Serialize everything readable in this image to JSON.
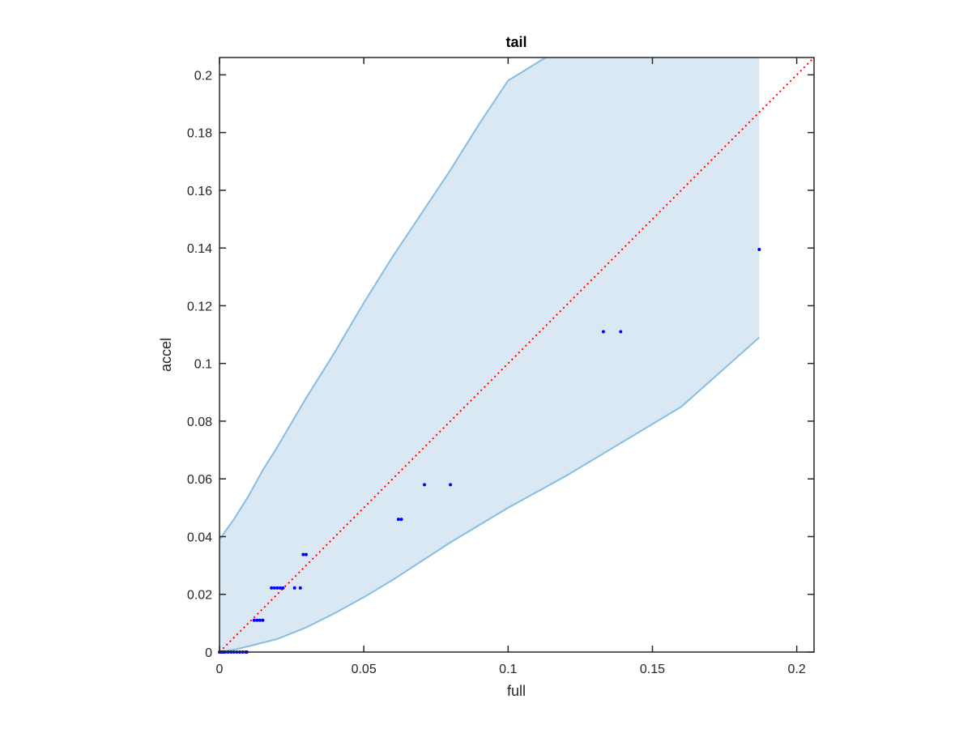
{
  "chart_data": {
    "type": "scatter",
    "title": "tail",
    "xlabel": "full",
    "ylabel": "accel",
    "xlim": [
      0,
      0.206
    ],
    "ylim": [
      0,
      0.206
    ],
    "xticks": [
      0,
      0.05,
      0.1,
      0.15,
      0.2
    ],
    "xtick_labels": [
      "0",
      "0.05",
      "0.1",
      "0.15",
      "0.2"
    ],
    "yticks": [
      0,
      0.02,
      0.04,
      0.06,
      0.08,
      0.1,
      0.12,
      0.14,
      0.16,
      0.18,
      0.2
    ],
    "ytick_labels": [
      "0",
      "0.02",
      "0.04",
      "0.06",
      "0.08",
      "0.1",
      "0.12",
      "0.14",
      "0.16",
      "0.18",
      "0.2"
    ],
    "grid": false,
    "colors": {
      "points": "#0000ff",
      "band_fill": "#dae8f4",
      "band_edge": "#86bde3",
      "reference_line": "#ff0000",
      "axes": "#262626"
    },
    "reference_line": {
      "style": "dotted",
      "x": [
        0,
        0.206
      ],
      "y": [
        0,
        0.206
      ]
    },
    "band": {
      "upper": {
        "x": [
          0,
          0.005,
          0.01,
          0.015,
          0.02,
          0.03,
          0.04,
          0.05,
          0.06,
          0.07,
          0.08,
          0.09,
          0.1,
          0.113
        ],
        "y": [
          0.039,
          0.046,
          0.054,
          0.063,
          0.071,
          0.088,
          0.104,
          0.121,
          0.137,
          0.152,
          0.167,
          0.183,
          0.198,
          0.206
        ]
      },
      "lower": {
        "x": [
          0,
          0.005,
          0.01,
          0.02,
          0.03,
          0.04,
          0.05,
          0.06,
          0.08,
          0.1,
          0.12,
          0.14,
          0.16,
          0.187
        ],
        "y": [
          0,
          0.0008,
          0.002,
          0.0045,
          0.0085,
          0.0135,
          0.019,
          0.025,
          0.038,
          0.05,
          0.061,
          0.073,
          0.085,
          0.109
        ]
      },
      "right_edge_x": 0.187
    },
    "points": {
      "x": [
        0,
        0.0005,
        0.001,
        0.0015,
        0.002,
        0.003,
        0.004,
        0.005,
        0.006,
        0.007,
        0.008,
        0.009,
        0.0095,
        0.012,
        0.013,
        0.014,
        0.015,
        0.018,
        0.019,
        0.02,
        0.021,
        0.022,
        0.026,
        0.028,
        0.029,
        0.03,
        0.062,
        0.063,
        0.071,
        0.08,
        0.133,
        0.139,
        0.187
      ],
      "y": [
        0,
        0,
        0,
        0,
        0,
        0,
        0,
        0,
        0,
        0,
        0,
        0,
        0,
        0.011,
        0.011,
        0.011,
        0.011,
        0.0222,
        0.0222,
        0.0222,
        0.0222,
        0.0222,
        0.0222,
        0.0222,
        0.0338,
        0.0338,
        0.046,
        0.046,
        0.058,
        0.058,
        0.111,
        0.111,
        0.1395
      ]
    }
  }
}
